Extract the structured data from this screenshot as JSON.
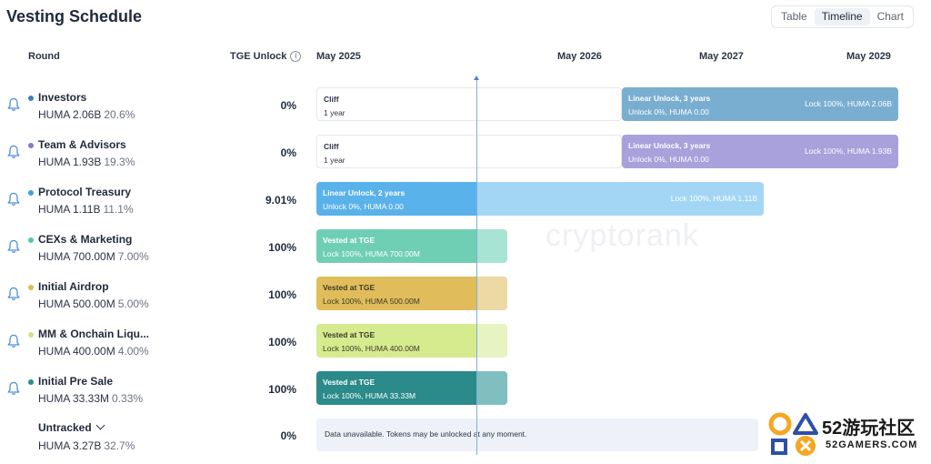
{
  "title": "Vesting Schedule",
  "view_toggle": {
    "options": [
      "Table",
      "Timeline",
      "Chart"
    ],
    "active": "Timeline"
  },
  "headers": {
    "round": "Round",
    "tge_unlock": "TGE Unlock",
    "info_icon": "info-icon"
  },
  "timeline_dates": [
    "May 2025",
    "May 2026",
    "May 2027",
    "May 2029"
  ],
  "watermark": "cryptorank",
  "rows": [
    {
      "name": "Investors",
      "amount": "HUMA 2.06B",
      "percent": "20.6%",
      "tge": "0%",
      "dot_color": "#3f7fbf",
      "segments": [
        {
          "type": "cliff",
          "title": "Cliff",
          "sub": "1 year"
        },
        {
          "type": "linear",
          "title": "Linear Unlock, 3 years",
          "sub": "Unlock 0%, HUMA 0.00",
          "right": "Lock 100%, HUMA 2.06B",
          "color": "#7aaed0"
        }
      ]
    },
    {
      "name": "Team & Advisors",
      "amount": "HUMA 1.93B",
      "percent": "19.3%",
      "tge": "0%",
      "dot_color": "#8a78c8",
      "segments": [
        {
          "type": "cliff",
          "title": "Cliff",
          "sub": "1 year"
        },
        {
          "type": "linear",
          "title": "Linear Unlock, 3 years",
          "sub": "Unlock 0%, HUMA 0.00",
          "right": "Lock 100%, HUMA 1.93B",
          "color": "#a9a1dc"
        }
      ]
    },
    {
      "name": "Protocol Treasury",
      "amount": "HUMA 1.11B",
      "percent": "11.1%",
      "tge": "9.01%",
      "dot_color": "#3da0e0",
      "segments": [
        {
          "type": "linear",
          "title": "Linear Unlock, 2 years",
          "sub": "Unlock 0%, HUMA 0.00",
          "right": "Lock 100%, HUMA 1.11B",
          "color": "#5ab2ea",
          "light": "#a3d6f5"
        }
      ]
    },
    {
      "name": "CEXs & Marketing",
      "amount": "HUMA 700.00M",
      "percent": "7.00%",
      "tge": "100%",
      "dot_color": "#55c6aa",
      "segments": [
        {
          "type": "vested",
          "title": "Vested at TGE",
          "sub": "Lock 100%, HUMA 700.00M",
          "color": "#6fcfb5",
          "light": "#a8e4d4"
        }
      ]
    },
    {
      "name": "Initial Airdrop",
      "amount": "HUMA 500.00M",
      "percent": "5.00%",
      "tge": "100%",
      "dot_color": "#e3b94a",
      "segments": [
        {
          "type": "vested",
          "title": "Vested at TGE",
          "sub": "Lock 100%, HUMA 500.00M",
          "color": "#e0bd5a",
          "light": "#ecd9a3"
        }
      ]
    },
    {
      "name": "MM & Onchain Liqu...",
      "amount": "HUMA 400.00M",
      "percent": "4.00%",
      "tge": "100%",
      "dot_color": "#cfe58a",
      "segments": [
        {
          "type": "vested",
          "title": "Vested at TGE",
          "sub": "Lock 100%, HUMA 400.00M",
          "color": "#d6ea8e",
          "light": "#e8f3c2"
        }
      ]
    },
    {
      "name": "Initial Pre Sale",
      "amount": "HUMA 33.33M",
      "percent": "0.33%",
      "tge": "100%",
      "dot_color": "#2a8c8c",
      "segments": [
        {
          "type": "vested",
          "title": "Vested at TGE",
          "sub": "Lock 100%, HUMA 33.33M",
          "color": "#2b8a8a",
          "light": "#7fbfbf"
        }
      ]
    }
  ],
  "untracked": {
    "name": "Untracked",
    "amount": "HUMA 3.27B",
    "percent": "32.7%",
    "tge": "0%",
    "message": "Data unavailable. Tokens may be unlocked at any moment."
  },
  "logo": {
    "big": "52游玩社区",
    "small": "52GAMERS.COM"
  }
}
